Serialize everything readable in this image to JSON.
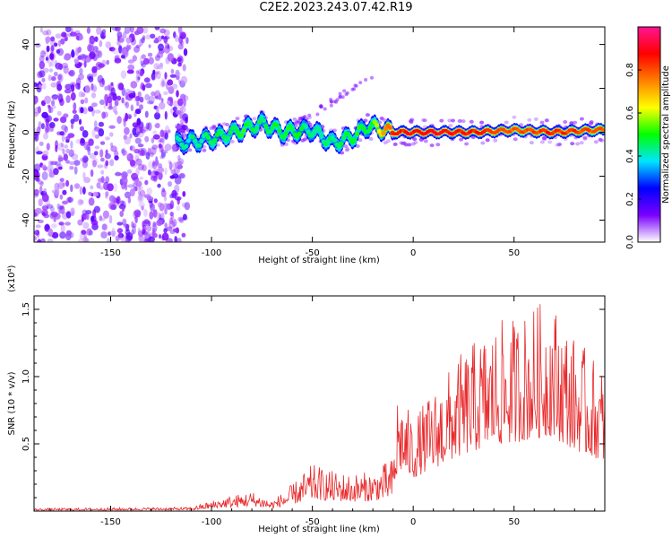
{
  "title": "C2E2.2023.243.07.42.R19",
  "chart_data": [
    {
      "type": "heatmap",
      "xlabel": "Height of straight line (km)",
      "ylabel": "Frequency (Hz)",
      "xlim": [
        -188,
        95
      ],
      "ylim": [
        -50,
        48
      ],
      "x_ticks": [
        -150,
        -100,
        -50,
        0,
        50
      ],
      "y_ticks": [
        -40,
        -20,
        0,
        20,
        40
      ],
      "colorbar": {
        "label": "Normalized spectral amplitude",
        "range": [
          0.0,
          1.0
        ],
        "ticks": [
          0.0,
          0.2,
          0.4,
          0.6,
          0.8
        ],
        "tick_labels": [
          "0.0",
          "0.2",
          "0.4",
          "0.6",
          "0.8"
        ],
        "colormap": [
          "#ffffff",
          "#7a00ff",
          "#0000ff",
          "#00e5ff",
          "#00ff00",
          "#ffff00",
          "#ff7f00",
          "#ff0000",
          "#ff1493"
        ]
      },
      "features": [
        {
          "x_range": [
            -188,
            -112
          ],
          "freq_range": [
            -50,
            48
          ],
          "amplitude": 0.05,
          "description": "scattered noise"
        },
        {
          "x": -117,
          "freq": -5,
          "amplitude": 0.4
        },
        {
          "x": -100,
          "freq": -3,
          "amplitude": 0.45
        },
        {
          "x": -85,
          "freq": 1,
          "amplitude": 0.5
        },
        {
          "x": -75,
          "freq": 4,
          "amplitude": 0.45
        },
        {
          "x": -65,
          "freq": 0,
          "amplitude": 0.5
        },
        {
          "x": -50,
          "freq": 1,
          "amplitude": 0.45
        },
        {
          "x": -40,
          "freq": -5,
          "amplitude": 0.45
        },
        {
          "x": -30,
          "freq": -2,
          "amplitude": 0.5
        },
        {
          "x": -22,
          "freq": 3,
          "amplitude": 0.45
        },
        {
          "x": -10,
          "freq": 0,
          "amplitude": 0.85
        },
        {
          "x": 10,
          "freq": 0,
          "amplitude": 0.9
        },
        {
          "x": 30,
          "freq": 0,
          "amplitude": 0.85
        },
        {
          "x": 50,
          "freq": 1,
          "amplitude": 0.8
        },
        {
          "x": 70,
          "freq": 0,
          "amplitude": 0.85
        },
        {
          "x": 90,
          "freq": 1,
          "amplitude": 0.8
        }
      ]
    },
    {
      "type": "line",
      "xlabel": "Height of straight line (km)",
      "ylabel": "SNR (10 * v/v)",
      "y_multiplier": "(x10⁴)",
      "xlim": [
        -188,
        95
      ],
      "ylim": [
        0,
        1.6
      ],
      "x_ticks": [
        -150,
        -100,
        -50,
        0,
        50
      ],
      "y_ticks": [
        0.5,
        1.0,
        1.5
      ],
      "y_tick_labels": [
        "0.5",
        "1.0",
        "1.5"
      ],
      "color": "#e8292b",
      "envelope": [
        {
          "x": -188,
          "y": 0.02
        },
        {
          "x": -110,
          "y": 0.03
        },
        {
          "x": -95,
          "y": 0.1
        },
        {
          "x": -80,
          "y": 0.15
        },
        {
          "x": -70,
          "y": 0.08
        },
        {
          "x": -60,
          "y": 0.2
        },
        {
          "x": -50,
          "y": 0.35
        },
        {
          "x": -40,
          "y": 0.3
        },
        {
          "x": -30,
          "y": 0.28
        },
        {
          "x": -20,
          "y": 0.3
        },
        {
          "x": -10,
          "y": 0.4
        },
        {
          "x": -8,
          "y": 0.9
        },
        {
          "x": 0,
          "y": 0.7
        },
        {
          "x": 15,
          "y": 1.0
        },
        {
          "x": 25,
          "y": 1.2
        },
        {
          "x": 40,
          "y": 1.4
        },
        {
          "x": 50,
          "y": 1.45
        },
        {
          "x": 68,
          "y": 1.6
        },
        {
          "x": 80,
          "y": 1.3
        },
        {
          "x": 95,
          "y": 1.05
        }
      ]
    }
  ]
}
